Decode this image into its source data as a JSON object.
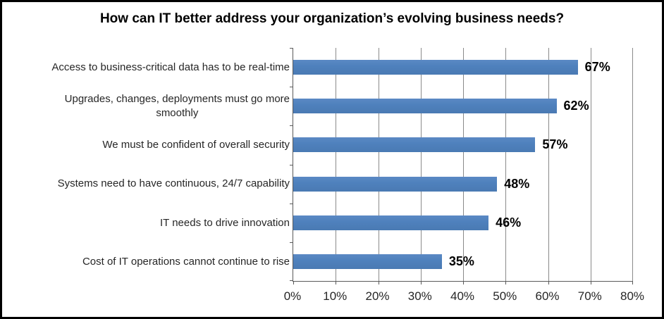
{
  "title": "How can IT better address your organization’s evolving business needs?",
  "chart_data": {
    "type": "bar",
    "orientation": "horizontal",
    "title": "How can IT better address your organization’s evolving business needs?",
    "categories": [
      "Access to business-critical data has to be real-time",
      "Upgrades, changes, deployments must go more\nsmoothly",
      "We must be confident of overall security",
      "Systems need to have continuous, 24/7 capability",
      "IT needs to drive innovation",
      "Cost of IT operations cannot continue to rise"
    ],
    "values": [
      67,
      62,
      57,
      48,
      46,
      35
    ],
    "value_labels": [
      "67%",
      "62%",
      "57%",
      "48%",
      "46%",
      "35%"
    ],
    "x_tick_labels": [
      "0%",
      "10%",
      "20%",
      "30%",
      "40%",
      "50%",
      "60%",
      "70%",
      "80%"
    ],
    "xlim": [
      0,
      80
    ],
    "grid": true,
    "legend": "none",
    "bar_color": "#4f81bd",
    "gridline_color": "#8a8a8a",
    "axis_color": "#595959",
    "category_label_color": "#262626",
    "data_label_color": "#000000"
  }
}
